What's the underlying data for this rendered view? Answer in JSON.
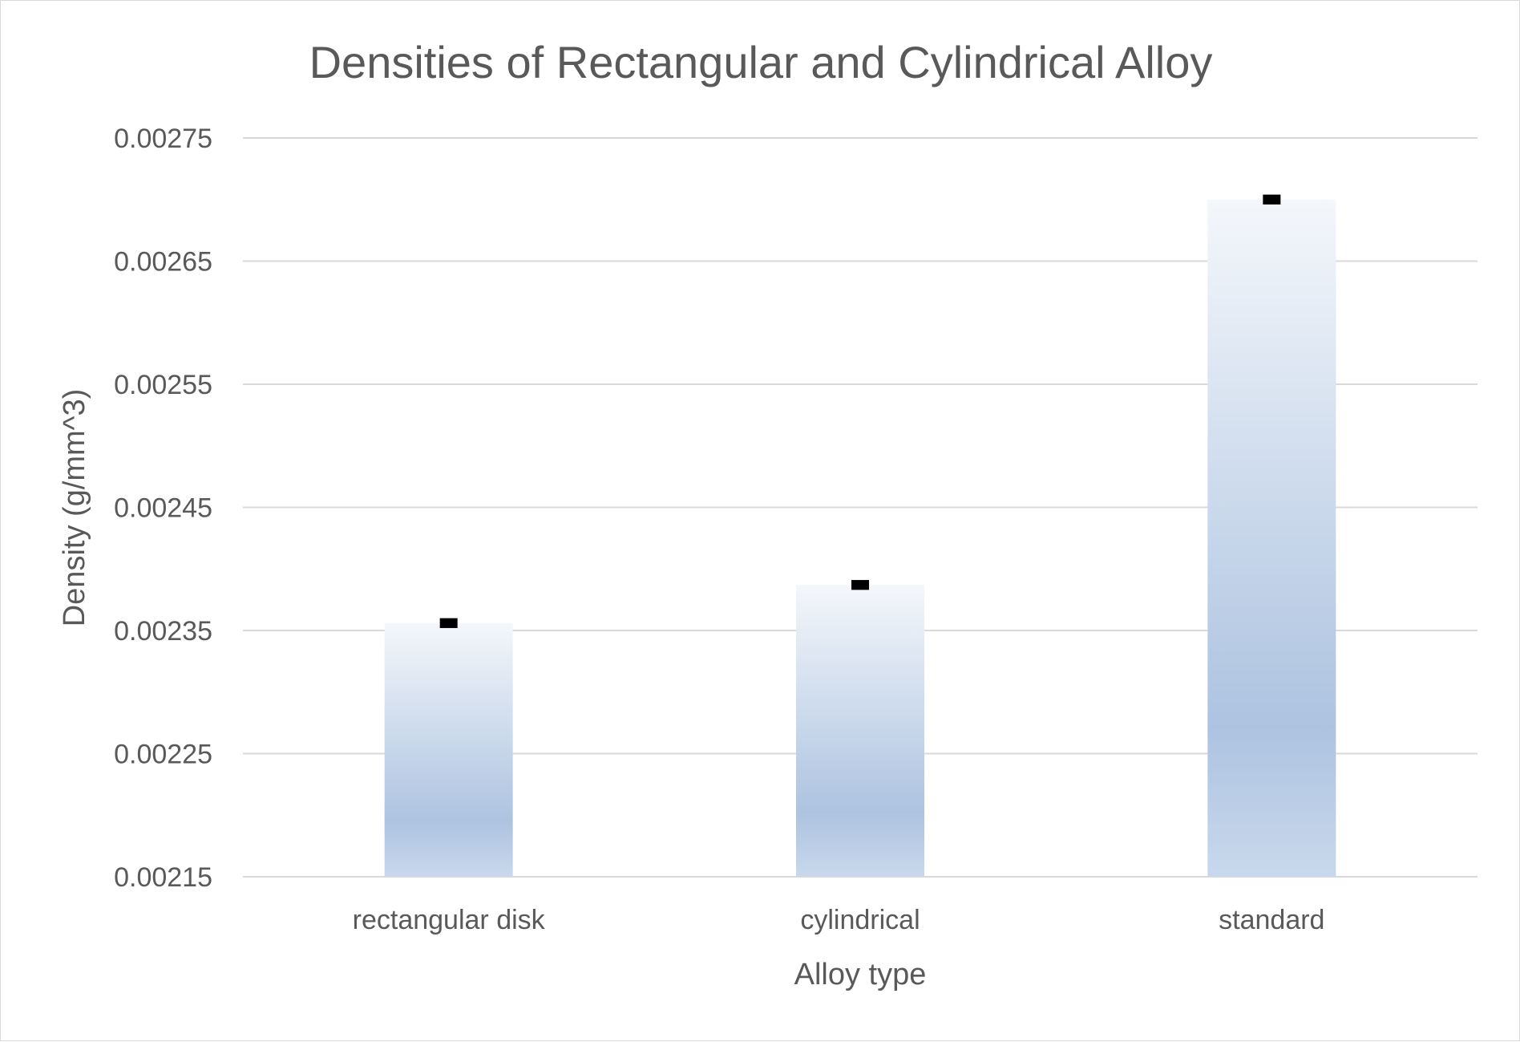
{
  "chart_data": {
    "type": "bar",
    "title": "Densities of Rectangular and Cylindrical Alloy",
    "xlabel": "Alloy type",
    "ylabel": "Density (g/mm^3)",
    "categories": [
      "rectangular disk",
      "cylindrical",
      "standard"
    ],
    "values": [
      0.002356,
      0.002387,
      0.0027
    ],
    "error": [
      4e-06,
      4e-06,
      4e-06
    ],
    "ylim": [
      0.00215,
      0.00275
    ],
    "yticks": [
      "0.00215",
      "0.00225",
      "0.00235",
      "0.00245",
      "0.00255",
      "0.00265",
      "0.00275"
    ],
    "grid": true,
    "legend": "none",
    "colors": {
      "bar_top": "#f4f7fb",
      "bar_mid": "#adc3e0",
      "bar_bottom": "#c9d8ec",
      "error_bar": "#000000",
      "grid": "#d9d9d9",
      "text": "#595959"
    }
  }
}
